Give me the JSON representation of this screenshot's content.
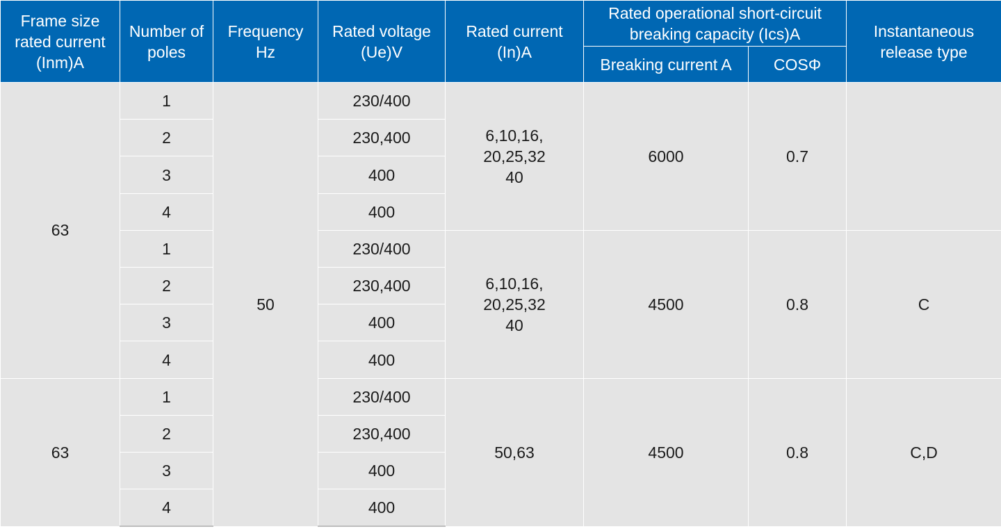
{
  "header": {
    "frame_size": "Frame size\nrated current\n(Inm)A",
    "poles": "Number of\npoles",
    "frequency": "Frequency\nHz",
    "rated_voltage": "Rated voltage\n(Ue)V",
    "rated_current": "Rated current\n(In)A",
    "breaking_capacity": "Rated operational short-circuit\nbreaking capacity (Ics)A",
    "breaking_current": "Breaking current A",
    "cos_phi": "COSΦ",
    "release_type": "Instantaneous\nrelease type"
  },
  "frequency": "50",
  "groups": [
    {
      "rated_current": "6,10,16,\n20,25,32\n40",
      "breaking_current": "6000",
      "cos_phi": "0.7",
      "rows": [
        {
          "poles": "1",
          "voltage": "230/400"
        },
        {
          "poles": "2",
          "voltage": "230,400"
        },
        {
          "poles": "3",
          "voltage": "400"
        },
        {
          "poles": "4",
          "voltage": "400"
        }
      ]
    },
    {
      "rated_current": "6,10,16,\n20,25,32\n40",
      "breaking_current": "4500",
      "cos_phi": "0.8",
      "rows": [
        {
          "poles": "1",
          "voltage": "230/400"
        },
        {
          "poles": "2",
          "voltage": "230,400"
        },
        {
          "poles": "3",
          "voltage": "400"
        },
        {
          "poles": "4",
          "voltage": "400"
        }
      ]
    },
    {
      "rated_current": "50,63",
      "breaking_current": "4500",
      "cos_phi": "0.8",
      "rows": [
        {
          "poles": "1",
          "voltage": "230/400"
        },
        {
          "poles": "2",
          "voltage": "230,400"
        },
        {
          "poles": "3",
          "voltage": "400"
        },
        {
          "poles": "4",
          "voltage": "400"
        }
      ]
    }
  ],
  "frame_sizes": [
    "63",
    "63"
  ],
  "release_types": [
    "",
    "C",
    "C,D"
  ]
}
